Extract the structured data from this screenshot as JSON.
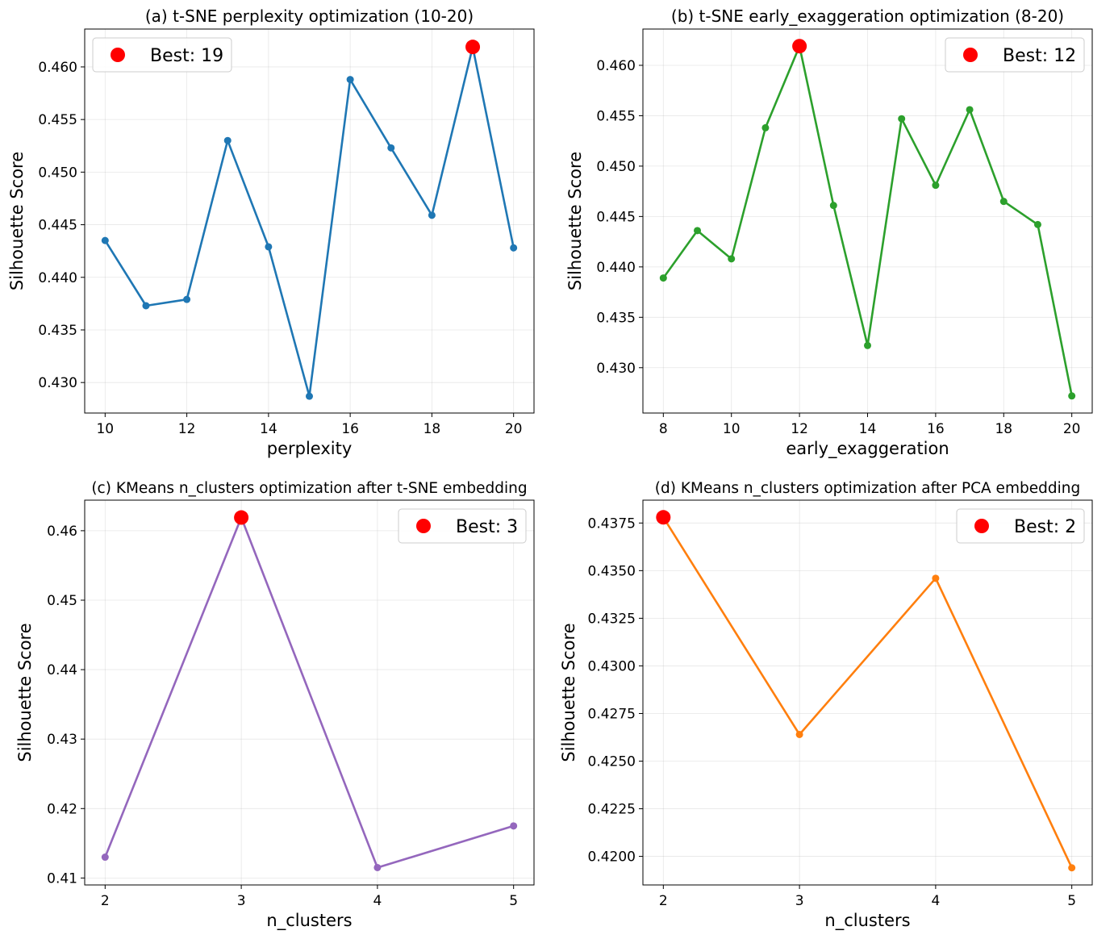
{
  "chart_data": [
    {
      "type": "line",
      "title": "(a) t-SNE perplexity optimization (10-20)",
      "xlabel": "perplexity",
      "ylabel": "Silhouette Score",
      "color": "#1f77b4",
      "x": [
        10,
        11,
        12,
        13,
        14,
        15,
        16,
        17,
        18,
        19,
        20
      ],
      "values": [
        0.4435,
        0.4373,
        0.4379,
        0.453,
        0.4429,
        0.4287,
        0.4588,
        0.4523,
        0.4459,
        0.4619,
        0.4428
      ],
      "xlim": [
        9.5,
        20.5
      ],
      "ylim": [
        0.4271,
        0.4636
      ],
      "xticks": [
        10,
        12,
        14,
        16,
        18,
        20
      ],
      "yticks": [
        0.43,
        0.435,
        0.44,
        0.445,
        0.45,
        0.455,
        0.46
      ],
      "ytick_decimals": 3,
      "best": {
        "x": 19,
        "y": 0.4619,
        "label": "Best: 19",
        "color": "#ff0000"
      },
      "legend_position": "upper-left",
      "grid": true
    },
    {
      "type": "line",
      "title": "(b) t-SNE early_exaggeration optimization (8-20)",
      "xlabel": "early_exaggeration",
      "ylabel": "Silhouette Score",
      "color": "#2ca02c",
      "x": [
        8,
        9,
        10,
        11,
        12,
        13,
        14,
        15,
        16,
        17,
        18,
        19,
        20
      ],
      "values": [
        0.4389,
        0.4436,
        0.4408,
        0.4538,
        0.4619,
        0.4461,
        0.4322,
        0.4547,
        0.4481,
        0.4556,
        0.4465,
        0.4442,
        0.4272
      ],
      "xlim": [
        7.4,
        20.6
      ],
      "ylim": [
        0.4255,
        0.4636
      ],
      "xticks": [
        8,
        10,
        12,
        14,
        16,
        18,
        20
      ],
      "yticks": [
        0.43,
        0.435,
        0.44,
        0.445,
        0.45,
        0.455,
        0.46
      ],
      "ytick_decimals": 3,
      "best": {
        "x": 12,
        "y": 0.4619,
        "label": "Best: 12",
        "color": "#ff0000"
      },
      "legend_position": "upper-right",
      "grid": true
    },
    {
      "type": "line",
      "title": "(c) KMeans n_clusters optimization after t-SNE embedding",
      "xlabel": "n_clusters",
      "ylabel": "Silhouette Score",
      "color": "#9467bd",
      "x": [
        2,
        3,
        4,
        5
      ],
      "values": [
        0.413,
        0.4619,
        0.4115,
        0.4175
      ],
      "xlim": [
        1.85,
        5.15
      ],
      "ylim": [
        0.409,
        0.4644
      ],
      "xticks": [
        2,
        3,
        4,
        5
      ],
      "yticks": [
        0.41,
        0.42,
        0.43,
        0.44,
        0.45,
        0.46
      ],
      "ytick_decimals": 2,
      "best": {
        "x": 3,
        "y": 0.4619,
        "label": "Best: 3",
        "color": "#ff0000"
      },
      "legend_position": "upper-right",
      "grid": true
    },
    {
      "type": "line",
      "title": "(d) KMeans n_clusters optimization after PCA embedding",
      "xlabel": "n_clusters",
      "ylabel": "Silhouette Score",
      "color": "#ff7f0e",
      "x": [
        2,
        3,
        4,
        5
      ],
      "values": [
        0.4378,
        0.4264,
        0.4346,
        0.4194
      ],
      "xlim": [
        1.85,
        5.15
      ],
      "ylim": [
        0.4185,
        0.4387
      ],
      "xticks": [
        2,
        3,
        4,
        5
      ],
      "yticks": [
        0.42,
        0.4225,
        0.425,
        0.4275,
        0.43,
        0.4325,
        0.435,
        0.4375
      ],
      "ytick_decimals": 4,
      "best": {
        "x": 2,
        "y": 0.4378,
        "label": "Best: 2",
        "color": "#ff0000"
      },
      "legend_position": "upper-right",
      "grid": true
    }
  ]
}
